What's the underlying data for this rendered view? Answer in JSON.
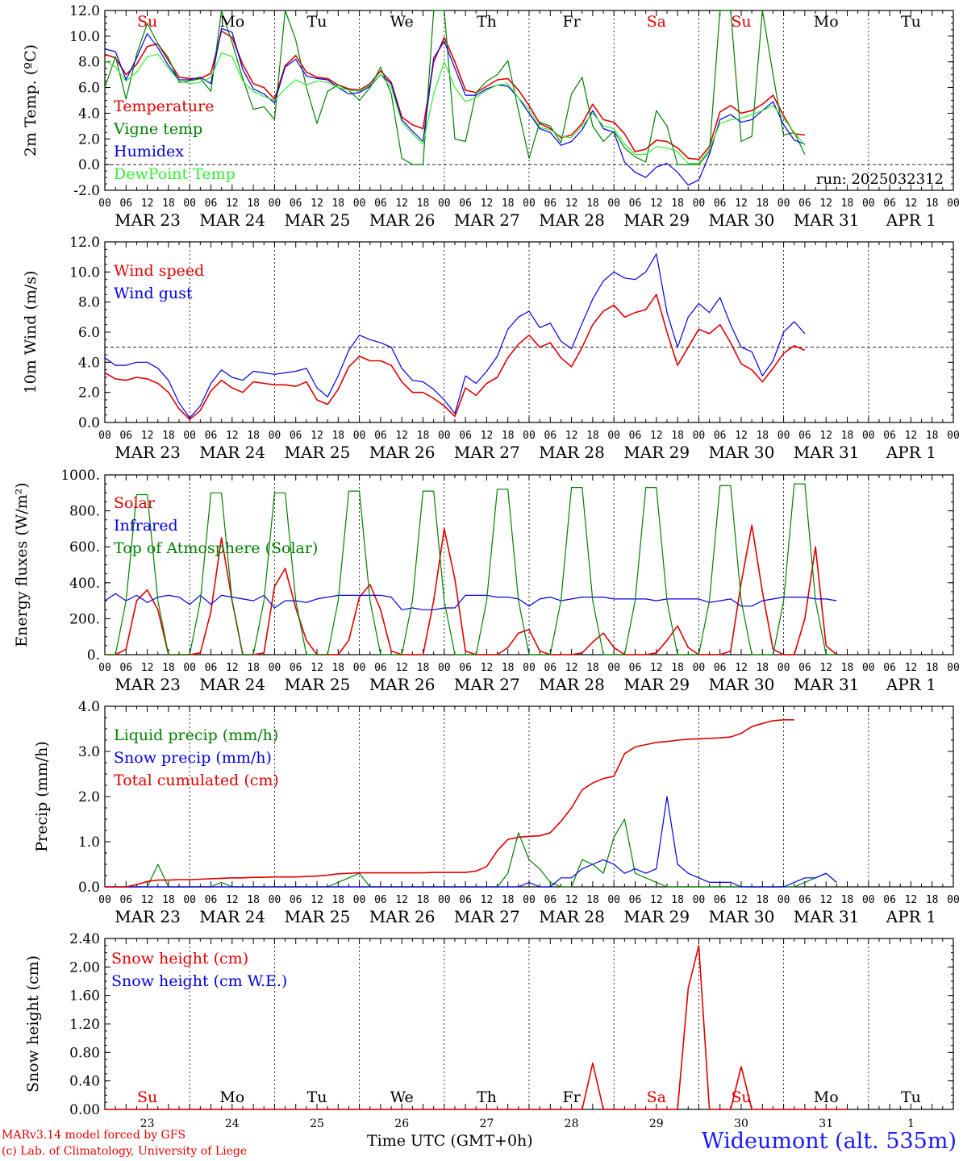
{
  "footer": {
    "model_line": "MARv3.14 model forced by GFS",
    "credit_line": "(c) Lab. of Climatology, University of Liege",
    "time_axis_label": "Time UTC (GMT+0h)",
    "station": "Wideumont (alt. 535m)"
  },
  "colors": {
    "red": "#e00000",
    "green": "#008000",
    "blue": "#0000e0",
    "lime": "#33ee33",
    "black": "#000000"
  },
  "time_axis": {
    "start": "2025-03-23 00:00 UTC",
    "end": "2025-04-02 00:00 UTC",
    "hour_ticks": [
      "00",
      "06",
      "12",
      "18"
    ],
    "date_labels": [
      "MAR 23",
      "MAR 24",
      "MAR 25",
      "MAR 26",
      "MAR 27",
      "MAR 28",
      "MAR 29",
      "MAR 30",
      "MAR 31",
      "APR  1"
    ],
    "weekdays": [
      "Su",
      "Mo",
      "Tu",
      "We",
      "Th",
      "Fr",
      "Sa",
      "Su",
      "Mo",
      "Tu"
    ],
    "weekday_colors": [
      "#e00000",
      "#000000",
      "#000000",
      "#000000",
      "#000000",
      "#000000",
      "#e00000",
      "#e00000",
      "#000000",
      "#000000"
    ],
    "day_numbers": [
      "23",
      "24",
      "25",
      "26",
      "27",
      "28",
      "29",
      "30",
      "31",
      "1"
    ]
  },
  "chart_data": [
    {
      "type": "line",
      "ylabel": "2m Temp. (ºC)",
      "ylim": [
        -2,
        12
      ],
      "yticks": [
        "-2.0",
        "0.0",
        "2.0",
        "4.0",
        "6.0",
        "8.0",
        "10.0",
        "12.0"
      ],
      "ref_line": 0,
      "annotation": "run: 2025032312",
      "x_unit": "hours since Mar 23 00 UTC (3-hourly)",
      "series": [
        {
          "name": "Temperature",
          "color": "#e00000",
          "values": [
            8.6,
            8.3,
            7.0,
            7.8,
            9.2,
            9.4,
            8.1,
            6.8,
            6.7,
            6.7,
            7.1,
            10.4,
            9.9,
            7.8,
            6.3,
            6.0,
            5.1,
            7.7,
            8.5,
            7.2,
            6.8,
            6.7,
            6.2,
            5.9,
            5.8,
            6.3,
            7.3,
            6.4,
            3.7,
            3.1,
            2.8,
            8.0,
            9.9,
            8.0,
            5.8,
            5.6,
            6.1,
            6.6,
            6.7,
            5.8,
            4.6,
            3.2,
            2.8,
            2.1,
            2.3,
            3.2,
            4.7,
            3.5,
            3.3,
            2.4,
            1.0,
            1.2,
            1.9,
            1.8,
            1.3,
            0.5,
            0.4,
            1.4,
            4.1,
            4.6,
            4.0,
            4.2,
            4.7,
            5.4,
            3.8,
            2.4,
            2.3
          ]
        },
        {
          "name": "Vigne temp",
          "color": "#008000",
          "values": [
            6.0,
            8.4,
            5.1,
            8.6,
            11.0,
            9.4,
            8.3,
            6.4,
            6.5,
            6.7,
            5.7,
            12.0,
            9.5,
            6.7,
            4.3,
            4.5,
            3.5,
            12.0,
            9.7,
            6.0,
            3.2,
            5.7,
            6.2,
            5.8,
            5.0,
            6.0,
            7.6,
            5.5,
            0.5,
            0.0,
            0.0,
            12.0,
            12.0,
            2.0,
            1.8,
            5.6,
            6.5,
            7.0,
            8.1,
            4.2,
            0.5,
            3.3,
            3.0,
            1.7,
            5.5,
            6.8,
            3.0,
            1.8,
            2.6,
            1.3,
            0.6,
            0.2,
            4.2,
            3.0,
            0.0,
            0.0,
            0.0,
            1.0,
            12.0,
            12.0,
            1.8,
            2.2,
            12.0,
            7.0,
            2.3,
            2.5,
            0.8
          ]
        },
        {
          "name": "Humidex",
          "color": "#0000e0",
          "values": [
            9.0,
            8.8,
            6.6,
            8.3,
            10.2,
            9.1,
            7.7,
            6.6,
            6.6,
            6.8,
            6.3,
            10.6,
            10.3,
            7.4,
            5.9,
            5.5,
            4.8,
            7.6,
            8.2,
            6.9,
            6.7,
            6.6,
            6.0,
            5.5,
            5.6,
            6.1,
            7.0,
            6.3,
            3.5,
            2.6,
            1.8,
            8.3,
            9.6,
            7.5,
            5.4,
            5.4,
            5.9,
            6.2,
            6.1,
            5.2,
            4.0,
            2.8,
            2.5,
            1.5,
            1.8,
            2.7,
            4.2,
            2.8,
            2.5,
            0.2,
            -0.6,
            -1.0,
            -0.2,
            0.1,
            -0.6,
            -1.6,
            -1.2,
            0.8,
            3.5,
            3.9,
            3.3,
            3.5,
            4.2,
            4.9,
            3.1,
            1.9,
            1.6
          ]
        },
        {
          "name": "DewPoint Temp",
          "color": "#33ee33",
          "values": [
            8.1,
            7.6,
            6.5,
            7.2,
            8.4,
            8.6,
            7.5,
            6.5,
            6.3,
            6.4,
            6.8,
            8.7,
            8.4,
            6.5,
            5.7,
            5.3,
            5.0,
            5.9,
            6.6,
            6.2,
            6.5,
            6.4,
            6.0,
            5.8,
            5.7,
            6.2,
            7.0,
            6.0,
            3.3,
            2.4,
            1.6,
            5.5,
            8.0,
            6.0,
            4.9,
            5.2,
            5.8,
            6.2,
            6.3,
            5.2,
            4.3,
            2.9,
            2.7,
            2.2,
            2.1,
            3.0,
            4.0,
            3.0,
            2.8,
            1.6,
            0.8,
            0.8,
            1.4,
            1.3,
            1.0,
            0.1,
            0.1,
            1.2,
            3.2,
            3.5,
            3.6,
            3.9,
            4.2,
            4.6,
            3.6,
            2.5,
            1.5
          ]
        }
      ]
    },
    {
      "type": "line",
      "ylabel": "10m Wind (m/s)",
      "ylim": [
        0,
        12
      ],
      "yticks": [
        "0.0",
        "2.0",
        "4.0",
        "6.0",
        "8.0",
        "10.0",
        "12.0"
      ],
      "ref_line": 5,
      "x_unit": "hours since Mar 23 00 UTC (3-hourly)",
      "series": [
        {
          "name": "Wind speed",
          "color": "#e00000",
          "values": [
            3.3,
            2.9,
            2.8,
            3.0,
            2.9,
            2.6,
            2.0,
            0.9,
            0.2,
            0.8,
            2.1,
            2.8,
            2.3,
            2.0,
            2.7,
            2.6,
            2.5,
            2.5,
            2.4,
            2.7,
            1.5,
            1.2,
            2.2,
            3.7,
            4.4,
            4.1,
            4.1,
            3.8,
            2.7,
            2.0,
            2.0,
            1.6,
            1.1,
            0.4,
            2.3,
            1.8,
            2.6,
            3.0,
            4.3,
            5.2,
            5.8,
            5.0,
            5.3,
            4.3,
            3.7,
            5.0,
            6.5,
            7.4,
            7.8,
            7.0,
            7.3,
            7.5,
            8.5,
            6.0,
            3.8,
            5.0,
            6.2,
            5.9,
            6.5,
            5.3,
            3.9,
            3.5,
            2.7,
            3.6,
            4.6,
            5.1,
            4.8
          ]
        },
        {
          "name": "Wind gust",
          "color": "#0000e0",
          "values": [
            4.3,
            3.8,
            3.8,
            4.0,
            4.0,
            3.6,
            2.8,
            1.3,
            0.3,
            1.1,
            2.6,
            3.5,
            3.0,
            2.8,
            3.4,
            3.3,
            3.2,
            3.3,
            3.4,
            3.6,
            2.3,
            1.7,
            3.1,
            4.8,
            5.8,
            5.5,
            5.3,
            5.0,
            3.6,
            2.8,
            2.7,
            2.2,
            1.5,
            0.6,
            3.1,
            2.6,
            3.4,
            4.4,
            6.2,
            7.0,
            7.4,
            6.3,
            6.6,
            5.4,
            4.9,
            6.6,
            8.2,
            9.4,
            10.0,
            9.6,
            9.5,
            10.0,
            11.2,
            7.3,
            5.0,
            7.0,
            7.9,
            7.3,
            8.3,
            6.5,
            5.0,
            4.7,
            3.1,
            4.1,
            6.0,
            6.7,
            5.9
          ]
        }
      ]
    },
    {
      "type": "line",
      "ylabel": "Energy fluxes (W/m²)",
      "ylim": [
        0,
        1000
      ],
      "yticks": [
        "0.",
        "200.",
        "400.",
        "600.",
        "800.",
        "1000."
      ],
      "x_unit": "hours since Mar 23 00 UTC (3-hourly)",
      "series": [
        {
          "name": "Solar",
          "color": "#e00000",
          "values": [
            0,
            0,
            30,
            300,
            360,
            250,
            0,
            0,
            0,
            10,
            240,
            650,
            300,
            0,
            0,
            10,
            380,
            480,
            260,
            80,
            0,
            0,
            0,
            80,
            320,
            390,
            250,
            20,
            0,
            0,
            0,
            300,
            700,
            420,
            20,
            0,
            0,
            0,
            40,
            120,
            140,
            20,
            0,
            0,
            0,
            10,
            70,
            120,
            40,
            0,
            0,
            0,
            10,
            80,
            160,
            40,
            0,
            0,
            0,
            20,
            400,
            720,
            350,
            30,
            0,
            0,
            200,
            600,
            50,
            0
          ]
        },
        {
          "name": "Infrared",
          "color": "#0000e0",
          "values": [
            300,
            340,
            300,
            330,
            290,
            320,
            330,
            320,
            280,
            330,
            280,
            330,
            320,
            310,
            300,
            330,
            260,
            300,
            300,
            290,
            310,
            320,
            330,
            330,
            330,
            330,
            330,
            320,
            250,
            260,
            250,
            250,
            260,
            260,
            330,
            330,
            330,
            320,
            320,
            310,
            270,
            310,
            320,
            300,
            310,
            320,
            320,
            320,
            310,
            310,
            310,
            310,
            300,
            310,
            310,
            310,
            310,
            290,
            300,
            310,
            270,
            270,
            300,
            310,
            320,
            320,
            320,
            310,
            310,
            300
          ]
        },
        {
          "name": "Top of Atmosphere (Solar)",
          "color": "#008000",
          "values": [
            0,
            0,
            300,
            890,
            890,
            300,
            0,
            0,
            0,
            300,
            900,
            900,
            300,
            0,
            0,
            300,
            900,
            900,
            300,
            0,
            0,
            0,
            300,
            910,
            910,
            300,
            0,
            0,
            0,
            300,
            910,
            910,
            300,
            0,
            0,
            0,
            300,
            920,
            920,
            300,
            0,
            0,
            0,
            300,
            930,
            930,
            300,
            0,
            0,
            0,
            300,
            930,
            930,
            300,
            0,
            0,
            0,
            300,
            940,
            940,
            300,
            0,
            0,
            0,
            300,
            950,
            950,
            300,
            0,
            0
          ]
        }
      ]
    },
    {
      "type": "line",
      "ylabel": "Precip (mm/h)",
      "ylim": [
        0,
        4
      ],
      "yticks": [
        "0.0",
        "1.0",
        "2.0",
        "3.0",
        "4.0"
      ],
      "x_unit": "hours since Mar 23 00 UTC (3-hourly)",
      "series": [
        {
          "name": "Liquid precip (mm/h)",
          "color": "#008000",
          "values": [
            0,
            0,
            0,
            0,
            0,
            0.5,
            0,
            0,
            0,
            0,
            0,
            0.1,
            0,
            0,
            0,
            0,
            0,
            0,
            0,
            0,
            0,
            0,
            0.1,
            0.2,
            0.3,
            0,
            0,
            0,
            0,
            0,
            0,
            0,
            0,
            0,
            0,
            0,
            0,
            0,
            0.3,
            1.2,
            0.6,
            0.4,
            0.1,
            0,
            0,
            0.6,
            0.5,
            0.3,
            1.1,
            1.5,
            0.3,
            0.2,
            0.1,
            0,
            0,
            0,
            0,
            0,
            0,
            0,
            0,
            0,
            0,
            0,
            0,
            0,
            0.1,
            0.2,
            0.3,
            0.1
          ]
        },
        {
          "name": "Snow precip (mm/h)",
          "color": "#0000e0",
          "values": [
            0,
            0,
            0,
            0,
            0,
            0,
            0,
            0,
            0,
            0,
            0,
            0,
            0,
            0,
            0,
            0,
            0,
            0,
            0,
            0,
            0,
            0,
            0,
            0,
            0,
            0,
            0,
            0,
            0,
            0,
            0,
            0,
            0,
            0,
            0,
            0,
            0,
            0,
            0,
            0,
            0.1,
            0,
            0,
            0.2,
            0.2,
            0.4,
            0.5,
            0.6,
            0.5,
            0.3,
            0.4,
            0.3,
            0.4,
            2.0,
            0.5,
            0.3,
            0.2,
            0.1,
            0.1,
            0.1,
            0,
            0,
            0,
            0,
            0,
            0.1,
            0.2,
            0.2,
            0.3,
            0.1
          ]
        },
        {
          "name": "Total cumulated (cm)",
          "color": "#e00000",
          "values": [
            0,
            0,
            0,
            0.05,
            0.12,
            0.15,
            0.15,
            0.16,
            0.16,
            0.17,
            0.18,
            0.19,
            0.2,
            0.2,
            0.21,
            0.21,
            0.22,
            0.22,
            0.22,
            0.23,
            0.24,
            0.26,
            0.29,
            0.3,
            0.31,
            0.31,
            0.31,
            0.31,
            0.31,
            0.31,
            0.31,
            0.32,
            0.32,
            0.32,
            0.32,
            0.35,
            0.45,
            0.8,
            1.05,
            1.1,
            1.12,
            1.13,
            1.2,
            1.45,
            1.75,
            2.15,
            2.3,
            2.4,
            2.45,
            2.95,
            3.1,
            3.15,
            3.2,
            3.22,
            3.25,
            3.27,
            3.28,
            3.29,
            3.3,
            3.32,
            3.4,
            3.55,
            3.62,
            3.68,
            3.7,
            3.7
          ]
        }
      ]
    },
    {
      "type": "line",
      "ylabel": "Snow height (cm)",
      "ylim": [
        0,
        2.4
      ],
      "yticks": [
        "0.00",
        "0.40",
        "0.80",
        "1.20",
        "1.60",
        "2.00",
        "2.40"
      ],
      "x_unit": "hours since Mar 23 00 UTC (3-hourly)",
      "series": [
        {
          "name": "Snow height (cm)",
          "color": "#e00000",
          "values": [
            0,
            0,
            0,
            0,
            0,
            0,
            0,
            0,
            0,
            0,
            0,
            0,
            0,
            0,
            0,
            0,
            0,
            0,
            0,
            0,
            0,
            0,
            0,
            0,
            0,
            0,
            0,
            0,
            0,
            0,
            0,
            0,
            0,
            0,
            0,
            0,
            0,
            0,
            0,
            0,
            0,
            0,
            0,
            0,
            0,
            0,
            0.65,
            0,
            0,
            0,
            0,
            0,
            0,
            0,
            0,
            1.7,
            2.3,
            0,
            0,
            0,
            0.6,
            0,
            0,
            0,
            0,
            0,
            0,
            0,
            0,
            0,
            0
          ]
        },
        {
          "name": "Snow height (cm W.E.)",
          "color": "#0000e0",
          "values": []
        }
      ]
    }
  ]
}
